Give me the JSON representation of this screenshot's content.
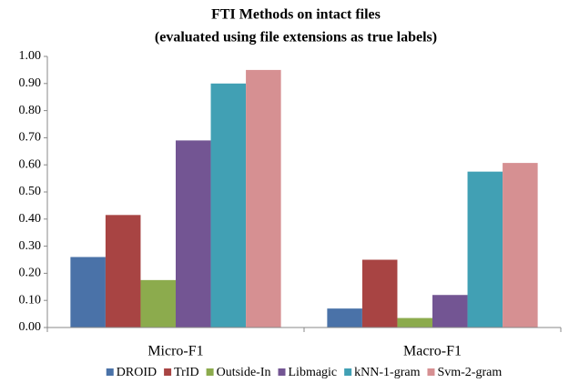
{
  "chart_data": {
    "type": "bar",
    "title": "FTI Methods on intact files",
    "subtitle": "(evaluated using file extensions as true labels)",
    "categories": [
      "Micro-F1",
      "Macro-F1"
    ],
    "series": [
      {
        "name": "DROID",
        "color": "#4a72a8",
        "values": [
          0.26,
          0.07
        ]
      },
      {
        "name": "TrID",
        "color": "#a84443",
        "values": [
          0.415,
          0.25
        ]
      },
      {
        "name": "Outside-In",
        "color": "#8cab4d",
        "values": [
          0.175,
          0.035
        ]
      },
      {
        "name": "Libmagic",
        "color": "#735593",
        "values": [
          0.69,
          0.12
        ]
      },
      {
        "name": "kNN-1-gram",
        "color": "#41a0b4",
        "values": [
          0.9,
          0.575
        ]
      },
      {
        "name": "Svm-2-gram",
        "color": "#d69092",
        "values": [
          0.95,
          0.607
        ]
      }
    ],
    "ylim": [
      0,
      1
    ],
    "yticks": [
      {
        "value": 0,
        "label": "0.00"
      },
      {
        "value": 0.1,
        "label": "0.10"
      },
      {
        "value": 0.2,
        "label": "0.20"
      },
      {
        "value": 0.3,
        "label": "0.30"
      },
      {
        "value": 0.4,
        "label": "0.40"
      },
      {
        "value": 0.5,
        "label": "0.50"
      },
      {
        "value": 0.6,
        "label": "0.60"
      },
      {
        "value": 0.7,
        "label": "0.70"
      },
      {
        "value": 0.8,
        "label": "0.80"
      },
      {
        "value": 0.9,
        "label": "0.90"
      },
      {
        "value": 1,
        "label": "1.00"
      }
    ],
    "grid": false,
    "legend": "bottom"
  }
}
